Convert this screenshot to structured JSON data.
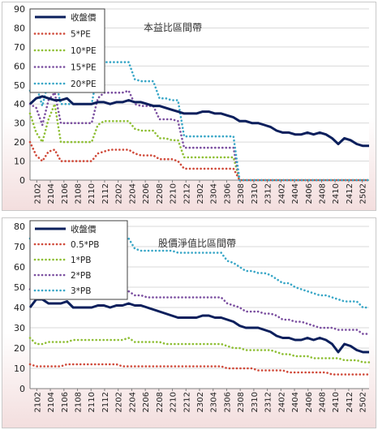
{
  "charts_title_hint": "",
  "chart_data": [
    {
      "type": "line",
      "title": "本益比區間帶",
      "xlabel": "",
      "ylabel": "",
      "ylim": [
        0,
        90
      ],
      "yticks": [
        0,
        10,
        20,
        30,
        40,
        50,
        60,
        70,
        80,
        90
      ],
      "xticks": [
        "2102",
        "2104",
        "2106",
        "2108",
        "2110",
        "2112",
        "2202",
        "2204",
        "2206",
        "2208",
        "2210",
        "2212",
        "2302",
        "2304",
        "2306",
        "2308",
        "2310",
        "2312",
        "2402",
        "2404",
        "2406",
        "2408",
        "2410",
        "2412",
        "2502"
      ],
      "grid": true,
      "legend_position": "top-left",
      "series": [
        {
          "name": "收盤價",
          "color": "#0b1f5c",
          "style": "solid",
          "values": [
            40,
            43,
            44,
            43,
            42,
            42,
            43,
            40,
            40,
            40,
            40,
            41,
            41,
            40,
            41,
            41,
            42,
            41,
            41,
            40,
            39,
            39,
            38,
            37,
            36,
            35,
            35,
            35,
            36,
            36,
            35,
            35,
            34,
            33,
            31,
            31,
            30,
            30,
            29,
            28,
            26,
            25,
            25,
            24,
            24,
            25,
            24,
            25,
            24,
            22,
            19,
            22,
            21,
            19,
            18,
            18
          ]
        },
        {
          "name": "5*PE",
          "color": "#d04a3a",
          "style": "dotted",
          "values": [
            20,
            13,
            10,
            15,
            16,
            10,
            10,
            10,
            10,
            10,
            10,
            14,
            15,
            16,
            16,
            16,
            16,
            14,
            13,
            13,
            13,
            11,
            11,
            11,
            10,
            6,
            6,
            6,
            6,
            6,
            6,
            6,
            6,
            6,
            0,
            0,
            0,
            0,
            0,
            0,
            0,
            0,
            0,
            0,
            0,
            0,
            0,
            0,
            0,
            0,
            0,
            0,
            0,
            0,
            0,
            0
          ]
        },
        {
          "name": "10*PE",
          "color": "#8fbf35",
          "style": "dotted",
          "values": [
            35,
            25,
            20,
            32,
            40,
            20,
            20,
            20,
            20,
            20,
            20,
            29,
            31,
            31,
            31,
            31,
            31,
            27,
            26,
            26,
            26,
            22,
            22,
            21,
            21,
            12,
            12,
            12,
            12,
            12,
            12,
            12,
            12,
            12,
            0,
            0,
            0,
            0,
            0,
            0,
            0,
            0,
            0,
            0,
            0,
            0,
            0,
            0,
            0,
            0,
            0,
            0,
            0,
            0,
            0,
            0
          ]
        },
        {
          "name": "15*PE",
          "color": "#7b4fa0",
          "style": "dotted",
          "values": [
            40,
            38,
            29,
            42,
            46,
            30,
            30,
            30,
            30,
            30,
            30,
            43,
            46,
            46,
            46,
            46,
            47,
            40,
            39,
            39,
            39,
            32,
            32,
            32,
            31,
            17,
            17,
            17,
            17,
            17,
            17,
            17,
            17,
            17,
            0,
            0,
            0,
            0,
            0,
            0,
            0,
            0,
            0,
            0,
            0,
            0,
            0,
            0,
            0,
            0,
            0,
            0,
            0,
            0,
            0,
            0
          ]
        },
        {
          "name": "20*PE",
          "color": "#3aa7c7",
          "style": "dotted",
          "values": [
            47,
            50,
            39,
            52,
            54,
            40,
            40,
            40,
            40,
            40,
            40,
            57,
            62,
            62,
            62,
            62,
            62,
            53,
            52,
            52,
            52,
            43,
            43,
            42,
            42,
            23,
            23,
            23,
            23,
            23,
            23,
            23,
            23,
            23,
            0,
            0,
            0,
            0,
            0,
            0,
            0,
            0,
            0,
            0,
            0,
            0,
            0,
            0,
            0,
            0,
            0,
            0,
            0,
            0,
            0,
            0
          ]
        }
      ]
    },
    {
      "type": "line",
      "title": "股價淨值比區間帶",
      "xlabel": "",
      "ylabel": "",
      "ylim": [
        0,
        80
      ],
      "yticks": [
        0,
        10,
        20,
        30,
        40,
        50,
        60,
        70,
        80
      ],
      "xticks": [
        "2102",
        "2104",
        "2106",
        "2108",
        "2110",
        "2112",
        "2202",
        "2204",
        "2206",
        "2208",
        "2210",
        "2212",
        "2302",
        "2304",
        "2306",
        "2308",
        "2310",
        "2312",
        "2402",
        "2404",
        "2406",
        "2408",
        "2410",
        "2412",
        "2502"
      ],
      "grid": true,
      "legend_position": "top-left",
      "series": [
        {
          "name": "收盤價",
          "color": "#0b1f5c",
          "style": "solid",
          "values": [
            40,
            44,
            44,
            42,
            42,
            42,
            43,
            40,
            40,
            40,
            40,
            41,
            41,
            40,
            41,
            41,
            42,
            41,
            41,
            40,
            39,
            38,
            37,
            36,
            35,
            35,
            35,
            35,
            36,
            36,
            35,
            35,
            34,
            33,
            31,
            30,
            30,
            30,
            29,
            28,
            26,
            25,
            25,
            24,
            24,
            25,
            24,
            25,
            24,
            22,
            18,
            22,
            21,
            19,
            18,
            18
          ]
        },
        {
          "name": "0.5*PB",
          "color": "#d04a3a",
          "style": "dotted",
          "values": [
            12,
            11,
            11,
            11,
            11,
            11,
            12,
            12,
            12,
            12,
            12,
            12,
            12,
            12,
            12,
            11,
            11,
            11,
            11,
            11,
            11,
            11,
            11,
            11,
            11,
            11,
            11,
            11,
            11,
            11,
            11,
            11,
            10,
            10,
            10,
            10,
            10,
            9,
            9,
            9,
            9,
            9,
            8,
            8,
            8,
            8,
            8,
            8,
            8,
            7,
            7,
            7,
            7,
            7,
            7,
            7
          ]
        },
        {
          "name": "1*PB",
          "color": "#8fbf35",
          "style": "dotted",
          "values": [
            25,
            22,
            22,
            23,
            23,
            23,
            23,
            24,
            24,
            24,
            24,
            24,
            24,
            24,
            24,
            24,
            25,
            23,
            23,
            23,
            23,
            23,
            22,
            22,
            22,
            22,
            22,
            22,
            22,
            22,
            22,
            22,
            21,
            20,
            20,
            19,
            19,
            19,
            19,
            19,
            18,
            17,
            17,
            16,
            16,
            16,
            15,
            15,
            15,
            15,
            15,
            14,
            14,
            14,
            13,
            13
          ]
        },
        {
          "name": "2*PB",
          "color": "#7b4fa0",
          "style": "dotted",
          "values": [
            49,
            44,
            45,
            46,
            46,
            46,
            47,
            47,
            47,
            47,
            47,
            47,
            47,
            47,
            47,
            47,
            48,
            46,
            46,
            45,
            45,
            45,
            45,
            45,
            45,
            45,
            45,
            45,
            45,
            45,
            45,
            45,
            42,
            41,
            40,
            38,
            38,
            38,
            37,
            37,
            36,
            34,
            34,
            33,
            33,
            32,
            31,
            30,
            30,
            30,
            29,
            29,
            29,
            29,
            27,
            27
          ]
        },
        {
          "name": "3*PB",
          "color": "#3aa7c7",
          "style": "dotted",
          "values": [
            74,
            67,
            67,
            69,
            69,
            69,
            71,
            71,
            71,
            71,
            71,
            71,
            71,
            71,
            71,
            71,
            74,
            69,
            68,
            68,
            68,
            68,
            68,
            68,
            67,
            67,
            67,
            67,
            67,
            67,
            67,
            67,
            63,
            62,
            60,
            58,
            58,
            57,
            57,
            56,
            54,
            52,
            52,
            50,
            49,
            48,
            47,
            46,
            46,
            45,
            44,
            43,
            43,
            43,
            40,
            40
          ]
        }
      ]
    }
  ]
}
